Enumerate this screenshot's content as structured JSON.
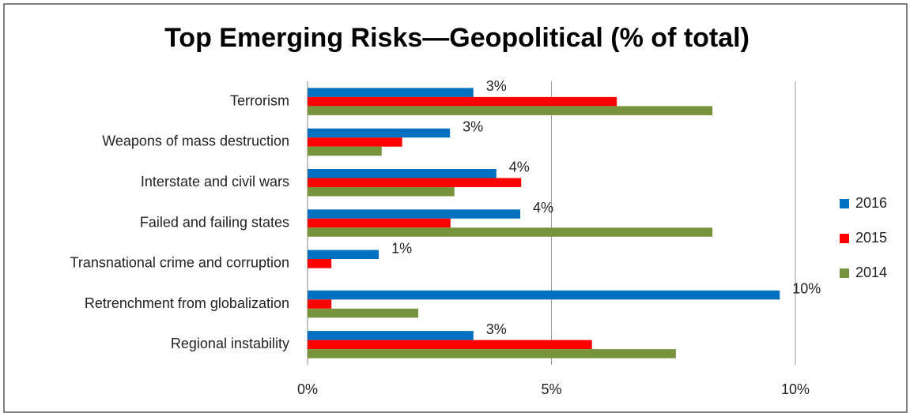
{
  "chart_data": {
    "type": "hbar",
    "title": "Top Emerging Risks—Geopolitical (% of total)",
    "categories": [
      "Terrorism",
      "Weapons of mass destruction",
      "Interstate and civil wars",
      "Failed and failing states",
      "Transnational crime and corruption",
      "Retrenchment from globalization",
      "Regional instability"
    ],
    "series": [
      {
        "name": "2016",
        "color": "#0070c0",
        "values": [
          3.4,
          2.92,
          3.87,
          4.36,
          1.46,
          9.68,
          3.4
        ],
        "value_labels": [
          "3%",
          "3%",
          "4%",
          "4%",
          "1%",
          "10%",
          "3%"
        ]
      },
      {
        "name": "2015",
        "color": "#ff0000",
        "values": [
          6.34,
          1.94,
          4.38,
          2.93,
          0.49,
          0.49,
          5.83
        ]
      },
      {
        "name": "2014",
        "color": "#77933c",
        "values": [
          8.3,
          1.52,
          3.01,
          8.3,
          0,
          2.27,
          7.55
        ]
      }
    ],
    "xlim": [
      0,
      10
    ],
    "xticks": [
      {
        "value": 0,
        "label": "0%"
      },
      {
        "value": 5,
        "label": "5%"
      },
      {
        "value": 10,
        "label": "10%"
      }
    ],
    "grid": true,
    "legend": "right"
  }
}
